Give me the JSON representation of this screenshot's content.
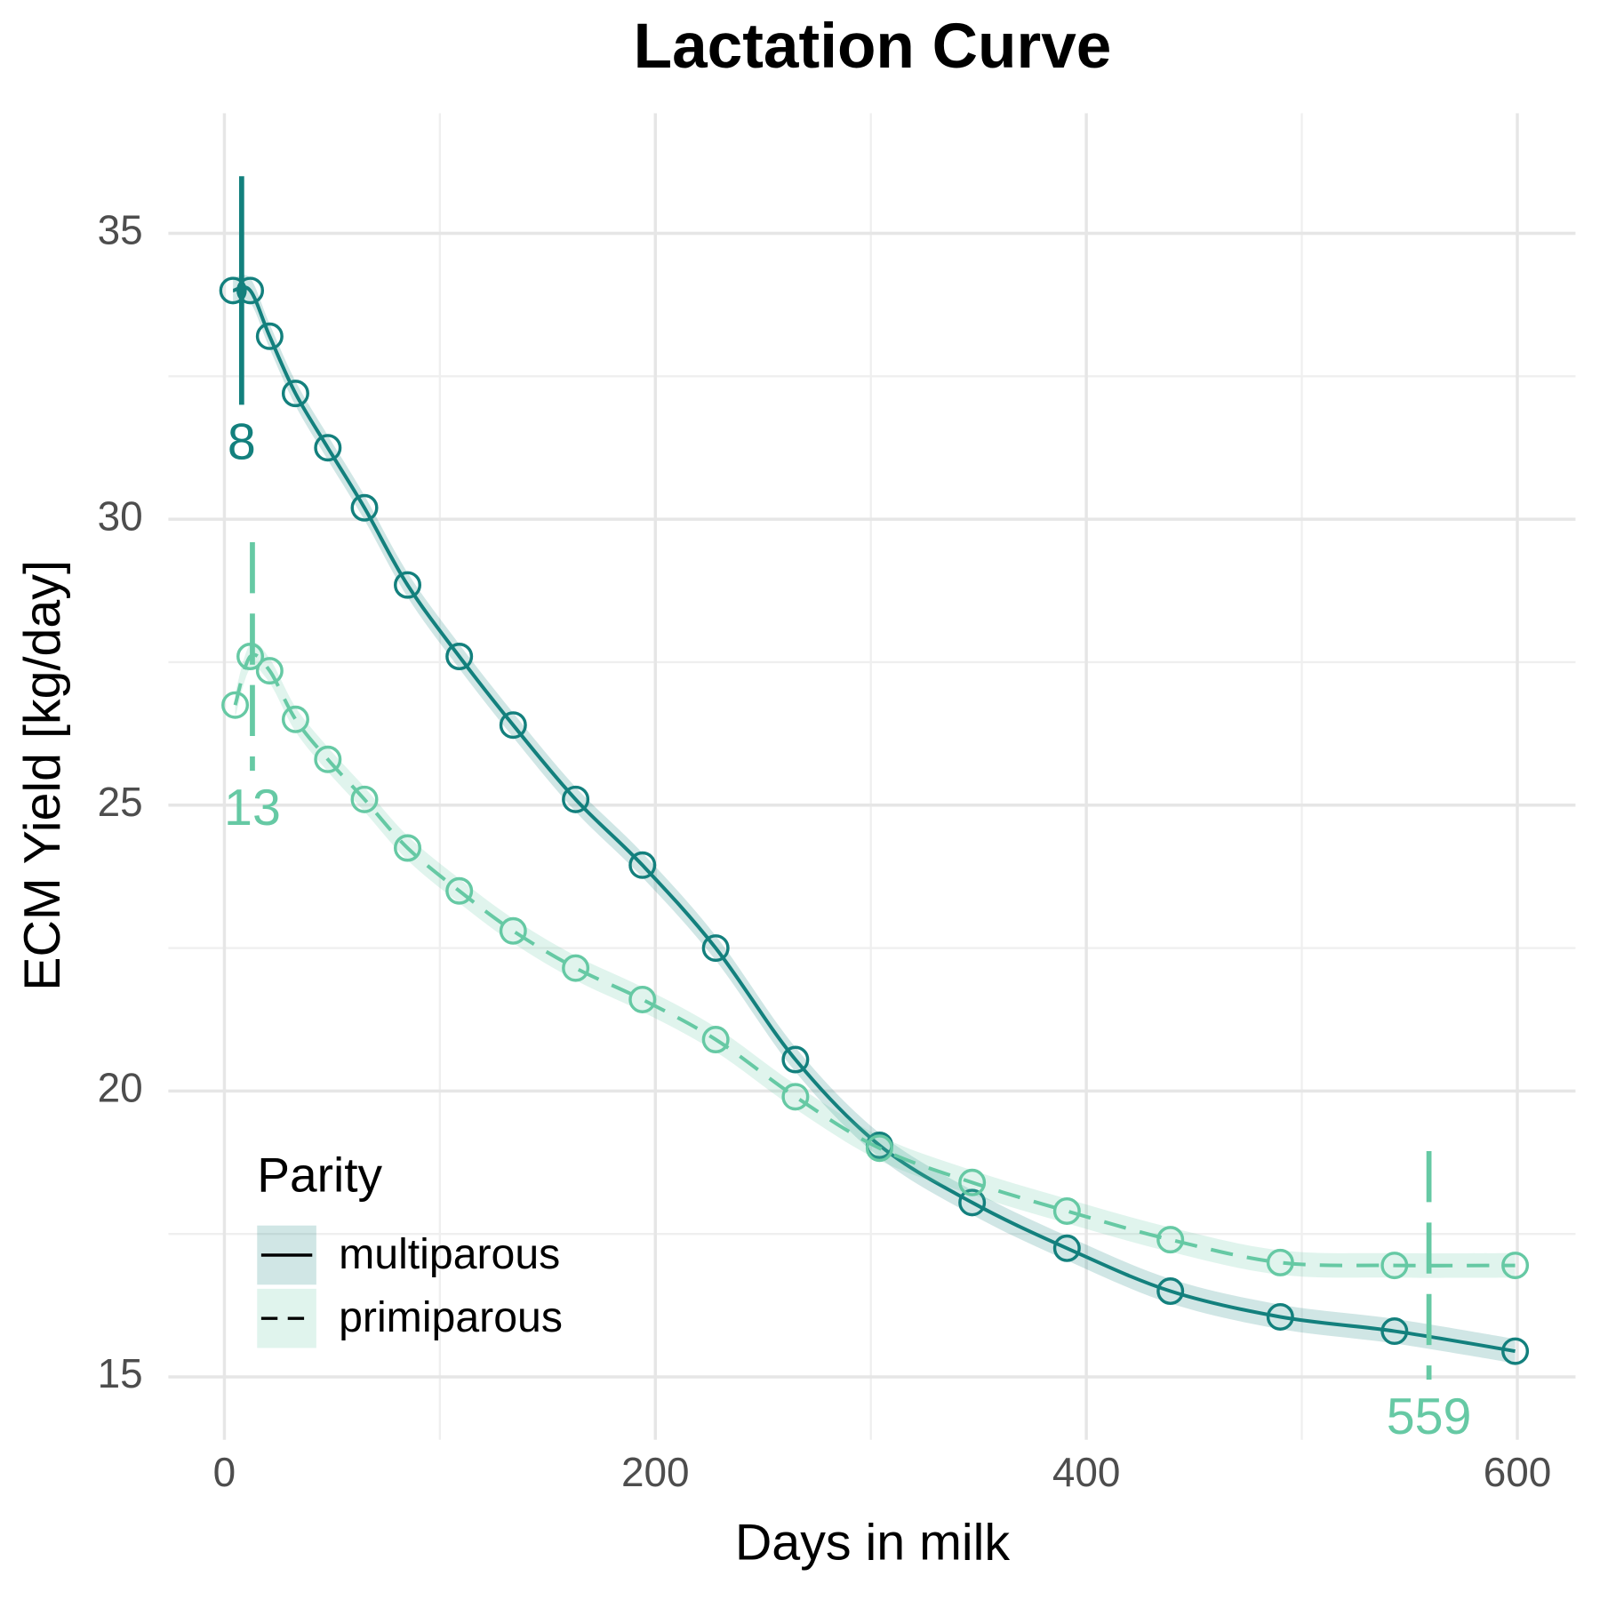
{
  "chart_data": {
    "type": "line",
    "title": "Lactation Curve",
    "xlabel": "Days in milk",
    "ylabel": "ECM Yield [kg/day]",
    "xlim": [
      -26,
      627
    ],
    "xticks": [
      0,
      200,
      400,
      600
    ],
    "ylim": [
      13.9,
      37.1
    ],
    "yticks": [
      15,
      20,
      25,
      30,
      35
    ],
    "grid": true,
    "legend": {
      "title": "Parity",
      "position": "bottom-left"
    },
    "series": [
      {
        "name": "multiparous",
        "color": "#13807d",
        "dash": "solid",
        "x": [
          4,
          12,
          21,
          33,
          48,
          65,
          85,
          109,
          134,
          163,
          194,
          228,
          265,
          304,
          347,
          391,
          439,
          490,
          543,
          599
        ],
        "values": [
          34.0,
          34.0,
          33.2,
          32.2,
          31.25,
          30.2,
          28.85,
          27.6,
          26.4,
          25.1,
          23.95,
          22.5,
          20.55,
          19.05,
          18.05,
          17.25,
          16.5,
          16.05,
          15.8,
          15.45
        ],
        "peaks": [
          8
        ]
      },
      {
        "name": "primiparous",
        "color": "#66c9a4",
        "dash": "dashed",
        "x": [
          5,
          12,
          21,
          33,
          48,
          65,
          85,
          109,
          134,
          163,
          194,
          228,
          265,
          304,
          347,
          391,
          439,
          490,
          543,
          599
        ],
        "values": [
          26.75,
          27.6,
          27.35,
          26.5,
          25.8,
          25.1,
          24.25,
          23.5,
          22.8,
          22.15,
          21.6,
          20.9,
          19.9,
          19.0,
          18.4,
          17.9,
          17.4,
          17.0,
          16.95,
          16.95
        ],
        "peaks": [
          13,
          559
        ]
      }
    ]
  }
}
